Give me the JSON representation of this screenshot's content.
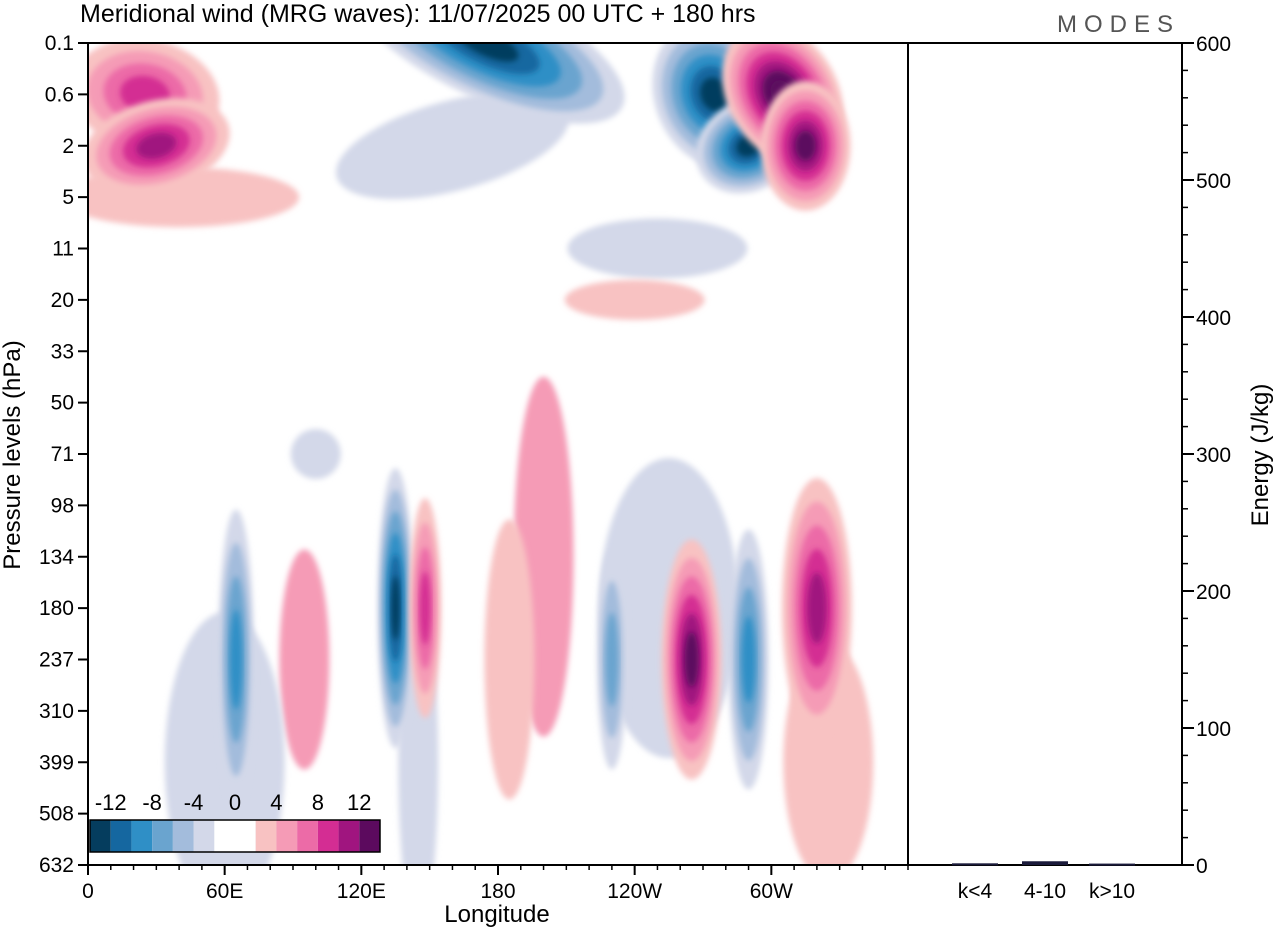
{
  "chart_data": [
    {
      "type": "heatmap",
      "title": "Meridional wind (MRG waves):  11/07/2025  00 UTC  + 180 hrs",
      "xlabel": "Longitude",
      "ylabel": "Pressure levels (hPa)",
      "x_ticks": [
        "0",
        "60E",
        "120E",
        "180",
        "120W",
        "60W"
      ],
      "x_tick_degrees": [
        0,
        60,
        120,
        180,
        240,
        300
      ],
      "xlim": [
        0,
        360
      ],
      "y_ticks": [
        "0.1",
        "0.6",
        "2",
        "5",
        "11",
        "20",
        "33",
        "50",
        "71",
        "98",
        "134",
        "180",
        "237",
        "310",
        "399",
        "508",
        "632"
      ],
      "colorbar": {
        "tick_labels": [
          "-12",
          "-8",
          "-4",
          "0",
          "4",
          "8",
          "12"
        ],
        "tick_values": [
          -12,
          -8,
          -4,
          0,
          4,
          8,
          12
        ],
        "boundaries": [
          -14,
          -12,
          -10,
          -8,
          -6,
          -4,
          -2,
          2,
          4,
          6,
          8,
          10,
          12,
          14
        ],
        "colors": [
          "#053d5e",
          "#1567a0",
          "#2f8fc6",
          "#6aa4cf",
          "#a3bcdc",
          "#d3d8e9",
          "#ffffff",
          "#f8c2c2",
          "#f59bb6",
          "#ec6ba7",
          "#d42d93",
          "#a0157f",
          "#5c0a5e"
        ]
      },
      "features": [
        {
          "lon": 25,
          "level": "0.6",
          "value": 9,
          "sign": "positive"
        },
        {
          "lon": 30,
          "level": "2",
          "value": 10,
          "sign": "positive"
        },
        {
          "lon": 175,
          "level": "0.1",
          "value": -13,
          "sign": "negative"
        },
        {
          "lon": 275,
          "level": "0.6",
          "value": -13,
          "sign": "negative"
        },
        {
          "lon": 290,
          "level": "2",
          "value": -12,
          "sign": "negative"
        },
        {
          "lon": 305,
          "level": "0.6",
          "value": 14,
          "sign": "positive"
        },
        {
          "lon": 315,
          "level": "2",
          "value": 13,
          "sign": "positive"
        },
        {
          "lon": 135,
          "level": "180",
          "value": -13,
          "sign": "negative"
        },
        {
          "lon": 148,
          "level": "180",
          "value": 9,
          "sign": "positive"
        },
        {
          "lon": 265,
          "level": "237",
          "value": 12,
          "sign": "positive"
        },
        {
          "lon": 290,
          "level": "237",
          "value": -9,
          "sign": "negative"
        },
        {
          "lon": 320,
          "level": "180",
          "value": 11,
          "sign": "positive"
        },
        {
          "lon": 65,
          "level": "237",
          "value": -8,
          "sign": "negative"
        },
        {
          "lon": 230,
          "level": "237",
          "value": -7,
          "sign": "negative"
        }
      ]
    },
    {
      "type": "bar",
      "ylabel": "Energy (J/kg)",
      "categories": [
        "k<4",
        "4-10",
        "k>10"
      ],
      "values": [
        0.5,
        2,
        0.3
      ],
      "ylim": [
        0,
        600
      ],
      "y_ticks": [
        "0",
        "100",
        "200",
        "300",
        "400",
        "500",
        "600"
      ]
    }
  ],
  "logo_text": "MODES"
}
